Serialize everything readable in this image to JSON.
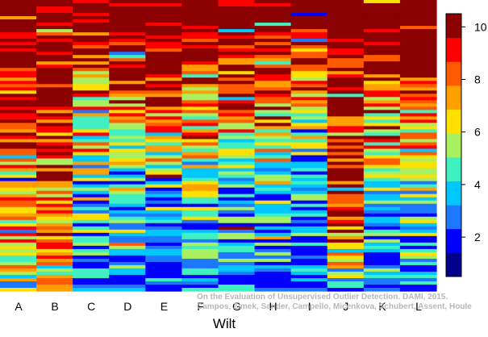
{
  "chart_data": {
    "type": "heatmap",
    "title": "",
    "xlabel": "Wilt",
    "ylabel": "",
    "columns": [
      "A",
      "B",
      "C",
      "D",
      "E",
      "F",
      "G",
      "H",
      "I",
      "J",
      "K",
      "L"
    ],
    "colorbar": {
      "ticks": [
        2,
        4,
        6,
        8,
        10
      ],
      "range": [
        0.5,
        10.5
      ],
      "colors": [
        "#00008b",
        "#0000ff",
        "#1e78ff",
        "#00c8ff",
        "#40f0c0",
        "#a8f060",
        "#ffe000",
        "#ffa000",
        "#ff5a00",
        "#ff0000",
        "#8b0000"
      ]
    },
    "value_profiles": [
      [
        [
          0,
          10
        ],
        [
          0.04,
          10
        ],
        [
          0.08,
          10
        ],
        [
          0.12,
          10
        ],
        [
          0.16,
          10
        ],
        [
          0.2,
          10
        ],
        [
          0.25,
          10
        ],
        [
          0.3,
          10
        ],
        [
          0.35,
          10
        ],
        [
          0.4,
          10
        ],
        [
          0.45,
          9
        ],
        [
          0.5,
          9
        ],
        [
          0.55,
          8
        ],
        [
          0.6,
          8
        ],
        [
          0.65,
          8
        ],
        [
          0.7,
          7
        ],
        [
          0.75,
          7
        ],
        [
          0.8,
          7
        ],
        [
          0.85,
          7
        ],
        [
          0.9,
          6
        ],
        [
          0.95,
          5
        ],
        [
          1,
          5
        ]
      ],
      [
        [
          0,
          10
        ],
        [
          0.04,
          10
        ],
        [
          0.08,
          10
        ],
        [
          0.12,
          10
        ],
        [
          0.16,
          10
        ],
        [
          0.2,
          10
        ],
        [
          0.25,
          10
        ],
        [
          0.3,
          10
        ],
        [
          0.35,
          10
        ],
        [
          0.4,
          10
        ],
        [
          0.45,
          9
        ],
        [
          0.5,
          9
        ],
        [
          0.55,
          8
        ],
        [
          0.6,
          8
        ],
        [
          0.65,
          8
        ],
        [
          0.7,
          7
        ],
        [
          0.75,
          7
        ],
        [
          0.8,
          7
        ],
        [
          0.85,
          7
        ],
        [
          0.9,
          6
        ],
        [
          0.95,
          5
        ],
        [
          1,
          5
        ]
      ],
      [
        [
          0,
          10
        ],
        [
          0.04,
          10
        ],
        [
          0.08,
          10
        ],
        [
          0.12,
          9
        ],
        [
          0.16,
          9
        ],
        [
          0.2,
          9
        ],
        [
          0.25,
          8
        ],
        [
          0.3,
          8
        ],
        [
          0.35,
          7
        ],
        [
          0.4,
          7
        ],
        [
          0.45,
          6
        ],
        [
          0.5,
          6
        ],
        [
          0.55,
          5
        ],
        [
          0.6,
          5
        ],
        [
          0.65,
          4
        ],
        [
          0.7,
          4
        ],
        [
          0.75,
          3
        ],
        [
          0.8,
          3
        ],
        [
          0.85,
          3
        ],
        [
          0.9,
          2
        ],
        [
          0.95,
          1
        ],
        [
          1,
          1
        ]
      ],
      [
        [
          0,
          10
        ],
        [
          0.04,
          10
        ],
        [
          0.08,
          10
        ],
        [
          0.12,
          10
        ],
        [
          0.16,
          10
        ],
        [
          0.2,
          10
        ],
        [
          0.25,
          9
        ],
        [
          0.3,
          9
        ],
        [
          0.35,
          8
        ],
        [
          0.4,
          7
        ],
        [
          0.45,
          6
        ],
        [
          0.5,
          5
        ],
        [
          0.55,
          5
        ],
        [
          0.6,
          4
        ],
        [
          0.65,
          4
        ],
        [
          0.7,
          3
        ],
        [
          0.75,
          3
        ],
        [
          0.8,
          3
        ],
        [
          0.85,
          2
        ],
        [
          0.9,
          2
        ],
        [
          0.95,
          1
        ],
        [
          1,
          1
        ]
      ],
      [
        [
          0,
          10
        ],
        [
          0.04,
          10
        ],
        [
          0.08,
          10
        ],
        [
          0.12,
          10
        ],
        [
          0.16,
          10
        ],
        [
          0.2,
          10
        ],
        [
          0.25,
          9
        ],
        [
          0.3,
          9
        ],
        [
          0.35,
          8
        ],
        [
          0.4,
          7
        ],
        [
          0.45,
          6
        ],
        [
          0.5,
          5
        ],
        [
          0.55,
          5
        ],
        [
          0.6,
          4
        ],
        [
          0.65,
          4
        ],
        [
          0.7,
          3
        ],
        [
          0.75,
          3
        ],
        [
          0.8,
          3
        ],
        [
          0.85,
          2
        ],
        [
          0.9,
          2
        ],
        [
          0.95,
          1
        ],
        [
          1,
          1
        ]
      ],
      [
        [
          0,
          10
        ],
        [
          0.04,
          10
        ],
        [
          0.08,
          10
        ],
        [
          0.12,
          10
        ],
        [
          0.16,
          10
        ],
        [
          0.2,
          9
        ],
        [
          0.25,
          9
        ],
        [
          0.3,
          8
        ],
        [
          0.35,
          7
        ],
        [
          0.4,
          7
        ],
        [
          0.45,
          6
        ],
        [
          0.5,
          6
        ],
        [
          0.55,
          5
        ],
        [
          0.6,
          5
        ],
        [
          0.65,
          4
        ],
        [
          0.7,
          4
        ],
        [
          0.75,
          3
        ],
        [
          0.8,
          3
        ],
        [
          0.85,
          3
        ],
        [
          0.9,
          2
        ],
        [
          0.95,
          2
        ],
        [
          1,
          2
        ]
      ],
      [
        [
          0,
          10
        ],
        [
          0.04,
          10
        ],
        [
          0.08,
          10
        ],
        [
          0.12,
          10
        ],
        [
          0.16,
          10
        ],
        [
          0.2,
          10
        ],
        [
          0.25,
          9
        ],
        [
          0.3,
          8
        ],
        [
          0.35,
          7
        ],
        [
          0.4,
          6
        ],
        [
          0.45,
          6
        ],
        [
          0.5,
          5
        ],
        [
          0.55,
          5
        ],
        [
          0.6,
          4
        ],
        [
          0.65,
          4
        ],
        [
          0.7,
          3
        ],
        [
          0.75,
          3
        ],
        [
          0.8,
          3
        ],
        [
          0.85,
          2
        ],
        [
          0.9,
          2
        ],
        [
          0.95,
          1
        ],
        [
          1,
          1
        ]
      ],
      [
        [
          0,
          10
        ],
        [
          0.04,
          10
        ],
        [
          0.08,
          10
        ],
        [
          0.12,
          10
        ],
        [
          0.16,
          10
        ],
        [
          0.2,
          10
        ],
        [
          0.25,
          9
        ],
        [
          0.3,
          9
        ],
        [
          0.35,
          8
        ],
        [
          0.4,
          7
        ],
        [
          0.45,
          6
        ],
        [
          0.5,
          6
        ],
        [
          0.55,
          5
        ],
        [
          0.6,
          4
        ],
        [
          0.65,
          4
        ],
        [
          0.7,
          3
        ],
        [
          0.75,
          3
        ],
        [
          0.8,
          2
        ],
        [
          0.85,
          2
        ],
        [
          0.9,
          2
        ],
        [
          0.95,
          1
        ],
        [
          1,
          1
        ]
      ],
      [
        [
          0,
          10
        ],
        [
          0.04,
          10
        ],
        [
          0.08,
          10
        ],
        [
          0.12,
          10
        ],
        [
          0.16,
          9
        ],
        [
          0.2,
          8
        ],
        [
          0.25,
          7
        ],
        [
          0.3,
          7
        ],
        [
          0.35,
          6
        ],
        [
          0.4,
          5
        ],
        [
          0.45,
          4
        ],
        [
          0.5,
          4
        ],
        [
          0.55,
          3
        ],
        [
          0.6,
          3
        ],
        [
          0.65,
          3
        ],
        [
          0.7,
          2
        ],
        [
          0.75,
          2
        ],
        [
          0.8,
          2
        ],
        [
          0.85,
          1
        ],
        [
          0.9,
          1
        ],
        [
          0.95,
          1
        ],
        [
          1,
          1
        ]
      ],
      [
        [
          0,
          10
        ],
        [
          0.04,
          10
        ],
        [
          0.08,
          10
        ],
        [
          0.12,
          10
        ],
        [
          0.16,
          10
        ],
        [
          0.2,
          10
        ],
        [
          0.25,
          10
        ],
        [
          0.3,
          10
        ],
        [
          0.35,
          10
        ],
        [
          0.4,
          10
        ],
        [
          0.45,
          10
        ],
        [
          0.5,
          10
        ],
        [
          0.55,
          10
        ],
        [
          0.6,
          10
        ],
        [
          0.65,
          10
        ],
        [
          0.7,
          10
        ],
        [
          0.75,
          9
        ],
        [
          0.8,
          8
        ],
        [
          0.85,
          7
        ],
        [
          0.9,
          5
        ],
        [
          0.95,
          3
        ],
        [
          1,
          1
        ]
      ],
      [
        [
          0,
          10
        ],
        [
          0.04,
          10
        ],
        [
          0.08,
          10
        ],
        [
          0.12,
          10
        ],
        [
          0.16,
          10
        ],
        [
          0.2,
          10
        ],
        [
          0.25,
          9
        ],
        [
          0.3,
          8
        ],
        [
          0.35,
          7
        ],
        [
          0.4,
          7
        ],
        [
          0.45,
          7
        ],
        [
          0.5,
          6
        ],
        [
          0.55,
          6
        ],
        [
          0.6,
          5
        ],
        [
          0.65,
          5
        ],
        [
          0.7,
          4
        ],
        [
          0.75,
          4
        ],
        [
          0.8,
          3
        ],
        [
          0.85,
          3
        ],
        [
          0.9,
          2
        ],
        [
          0.95,
          2
        ],
        [
          1,
          1
        ]
      ],
      [
        [
          0,
          10
        ],
        [
          0.04,
          10
        ],
        [
          0.08,
          10
        ],
        [
          0.12,
          10
        ],
        [
          0.16,
          10
        ],
        [
          0.2,
          10
        ],
        [
          0.25,
          10
        ],
        [
          0.3,
          9
        ],
        [
          0.35,
          8
        ],
        [
          0.4,
          7
        ],
        [
          0.45,
          6
        ],
        [
          0.5,
          6
        ],
        [
          0.55,
          5
        ],
        [
          0.6,
          5
        ],
        [
          0.65,
          4
        ],
        [
          0.7,
          4
        ],
        [
          0.75,
          3
        ],
        [
          0.8,
          3
        ],
        [
          0.85,
          3
        ],
        [
          0.9,
          2
        ],
        [
          0.95,
          1
        ],
        [
          1,
          1
        ]
      ]
    ],
    "grid": false,
    "legend": "right"
  },
  "watermark": {
    "line1": "On the Evaluation of Unsupervised Outlier Detection. DAMI, 2015.",
    "line2": "Campos, Zimek, Sander, Campello, Micenkova, Schubert, Assent, Houle"
  }
}
